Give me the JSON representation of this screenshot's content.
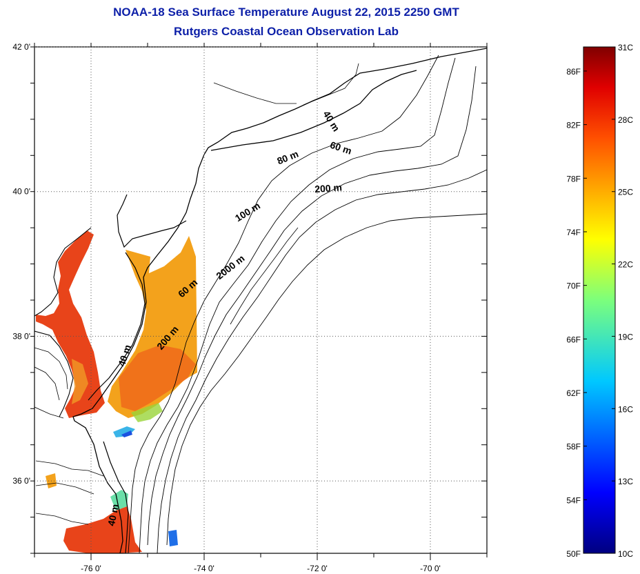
{
  "title": "NOAA-18 Sea Surface Temperature August 22, 2015 2250 GMT",
  "subtitle": "Rutgers Coastal Ocean Observation Lab",
  "lat_ticks": [
    {
      "value": 42,
      "label": "42 0'"
    },
    {
      "value": 40,
      "label": "40 0'"
    },
    {
      "value": 38,
      "label": "38 0'"
    },
    {
      "value": 36,
      "label": "36 0'"
    }
  ],
  "lon_ticks": [
    {
      "value": -76,
      "label": "-76 0'"
    },
    {
      "value": -74,
      "label": "-74 0'"
    },
    {
      "value": -72,
      "label": "-72 0'"
    },
    {
      "value": -70,
      "label": "-70 0'"
    }
  ],
  "bounds": {
    "lon_min": -77,
    "lon_max": -69,
    "lat_min": 35,
    "lat_max": 42
  },
  "isobaths": [
    {
      "label": "40 m",
      "lon": -71.8,
      "lat": 40.95,
      "angle": 58
    },
    {
      "label": "60 m",
      "lon": -71.6,
      "lat": 40.56,
      "angle": 18
    },
    {
      "label": "80 m",
      "lon": -72.5,
      "lat": 40.43,
      "angle": -22
    },
    {
      "label": "200 m",
      "lon": -71.8,
      "lat": 40.0,
      "angle": -4
    },
    {
      "label": "100 m",
      "lon": -73.2,
      "lat": 39.68,
      "angle": -32
    },
    {
      "label": "2000 m",
      "lon": -73.5,
      "lat": 38.92,
      "angle": -38
    },
    {
      "label": "60 m",
      "lon": -74.25,
      "lat": 38.63,
      "angle": -42
    },
    {
      "label": "200 m",
      "lon": -74.6,
      "lat": 37.95,
      "angle": -50
    },
    {
      "label": "40 m",
      "lon": -75.35,
      "lat": 37.72,
      "angle": -72
    },
    {
      "label": "40 m",
      "lon": -75.55,
      "lat": 35.52,
      "angle": -78
    }
  ],
  "colorbar": {
    "min_c": 10,
    "max_c": 31,
    "celsius_labels": [
      "31C",
      "28C",
      "25C",
      "22C",
      "19C",
      "16C",
      "13C",
      "10C"
    ],
    "celsius_values": [
      31,
      28,
      25,
      22,
      19,
      16,
      13,
      10
    ],
    "fahrenheit_labels": [
      "86F",
      "82F",
      "78F",
      "74F",
      "70F",
      "66F",
      "62F",
      "58F",
      "54F",
      "50F"
    ],
    "fahrenheit_values": [
      86,
      82,
      78,
      74,
      70,
      66,
      62,
      58,
      54,
      50
    ]
  },
  "colors": {
    "title": "#0c1fa8",
    "warm_water": "#e8441a",
    "land_line": "#000000"
  }
}
